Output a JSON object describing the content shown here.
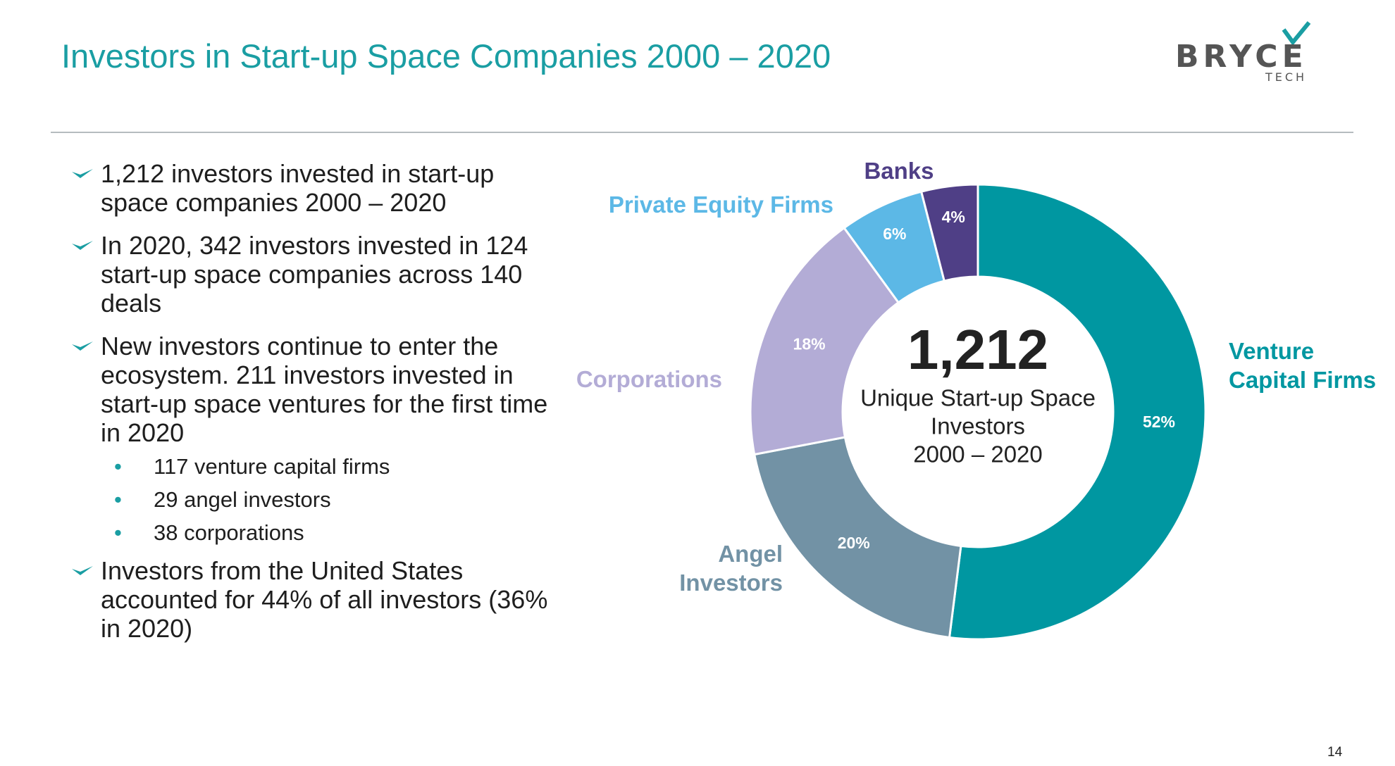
{
  "header": {
    "title": "Investors in Start-up Space Companies 2000 – 2020",
    "logo": {
      "name": "BRYCE",
      "sub": "TECH"
    }
  },
  "bullets": [
    {
      "text": "1,212 investors invested in start-up space companies 2000 – 2020"
    },
    {
      "text": "In 2020, 342 investors invested in 124 start-up space companies across 140 deals"
    },
    {
      "text": "New investors continue to enter the ecosystem. 211 investors invested in start-up space ventures for the first time in 2020",
      "sub": [
        "117 venture capital firms",
        "29 angel investors",
        "38 corporations"
      ]
    },
    {
      "text": "Investors from the United States accounted for 44% of all investors (36% in 2020)"
    }
  ],
  "chart_data": {
    "type": "donut",
    "categories": [
      "Venture Capital Firms",
      "Angel Investors",
      "Corporations",
      "Private Equity Firms",
      "Banks"
    ],
    "values": [
      52,
      20,
      18,
      6,
      4
    ],
    "value_labels": [
      "52%",
      "20%",
      "18%",
      "6%",
      "4%"
    ],
    "colors": [
      "#0097a1",
      "#7292a5",
      "#b3acd6",
      "#5cb8e6",
      "#4f3f86"
    ],
    "center_value": "1,212",
    "center_text": [
      "Unique Start-up Space",
      "Investors",
      "2000 – 2020"
    ]
  },
  "footer": {
    "page": "14"
  }
}
